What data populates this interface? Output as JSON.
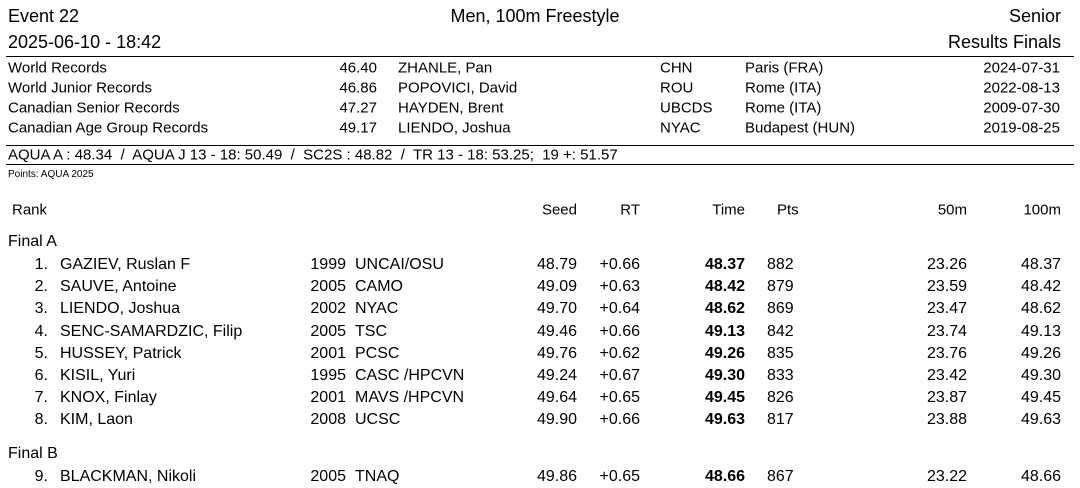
{
  "header": {
    "event": "Event 22",
    "title": "Men, 100m Freestyle",
    "category": "Senior",
    "datetime": "2025-06-10 - 18:42",
    "subtitle": "Results Finals"
  },
  "records": [
    [
      "World Records",
      "46.40",
      "ZHANLE, Pan",
      "CHN",
      "Paris (FRA)",
      "2024-07-31"
    ],
    [
      "World Junior Records",
      "46.86",
      "POPOVICI, David",
      "ROU",
      "Rome (ITA)",
      "2022-08-13"
    ],
    [
      "Canadian Senior Records",
      "47.27",
      "HAYDEN, Brent",
      "UBCDS",
      "Rome (ITA)",
      "2009-07-30"
    ],
    [
      "Canadian Age Group Records",
      "49.17",
      "LIENDO, Joshua",
      "NYAC",
      "Budapest (HUN)",
      "2019-08-25"
    ]
  ],
  "standards": "AQUA A : 48.34  /  AQUA J 13 - 18: 50.49  /  SC2S : 48.82  /  TR 13 - 18: 53.25;  19 +: 51.57",
  "points_note": "Points: AQUA 2025",
  "columns": {
    "rank": "Rank",
    "seed": "Seed",
    "rt": "RT",
    "time": "Time",
    "pts": "Pts",
    "split50": "50m",
    "split100": "100m"
  },
  "groups": [
    {
      "title": "Final A",
      "rows": [
        [
          "1.",
          "GAZIEV, Ruslan F",
          "1999",
          "UNCAI/OSU",
          "48.79",
          "+0.66",
          "48.37",
          "882",
          "23.26",
          "48.37"
        ],
        [
          "2.",
          "SAUVE, Antoine",
          "2005",
          "CAMO",
          "49.09",
          "+0.63",
          "48.42",
          "879",
          "23.59",
          "48.42"
        ],
        [
          "3.",
          "LIENDO, Joshua",
          "2002",
          "NYAC",
          "49.70",
          "+0.64",
          "48.62",
          "869",
          "23.47",
          "48.62"
        ],
        [
          "4.",
          "SENC-SAMARDZIC, Filip",
          "2005",
          "TSC",
          "49.46",
          "+0.66",
          "49.13",
          "842",
          "23.74",
          "49.13"
        ],
        [
          "5.",
          "HUSSEY, Patrick",
          "2001",
          "PCSC",
          "49.76",
          "+0.62",
          "49.26",
          "835",
          "23.76",
          "49.26"
        ],
        [
          "6.",
          "KISIL, Yuri",
          "1995",
          "CASC /HPCVN",
          "49.24",
          "+0.67",
          "49.30",
          "833",
          "23.42",
          "49.30"
        ],
        [
          "7.",
          "KNOX, Finlay",
          "2001",
          "MAVS /HPCVN",
          "49.64",
          "+0.65",
          "49.45",
          "826",
          "23.87",
          "49.45"
        ],
        [
          "8.",
          "KIM, Laon",
          "2008",
          "UCSC",
          "49.90",
          "+0.66",
          "49.63",
          "817",
          "23.88",
          "49.63"
        ]
      ]
    },
    {
      "title": "Final B",
      "rows": [
        [
          "9.",
          "BLACKMAN, Nikoli",
          "2005",
          "TNAQ",
          "49.86",
          "+0.65",
          "48.66",
          "867",
          "23.22",
          "48.66"
        ]
      ]
    }
  ]
}
